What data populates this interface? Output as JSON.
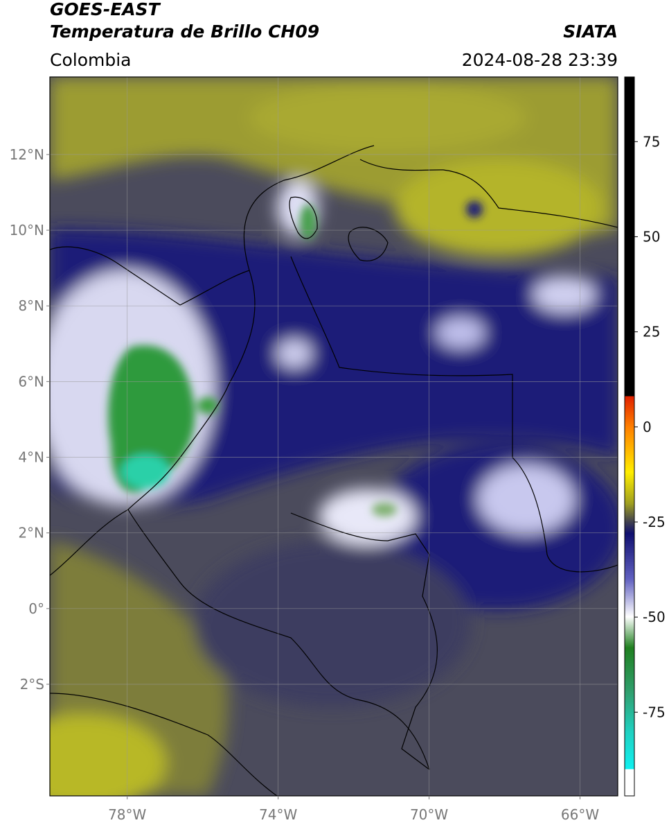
{
  "header": {
    "satellite": "GOES-EAST",
    "product": "Temperatura de Brillo CH09",
    "source": "SIATA",
    "region": "Colombia",
    "timestamp": "2024-08-28 23:39"
  },
  "map": {
    "lon_range": [
      -80.05,
      -65.0
    ],
    "lat_range": [
      -4.95,
      14.05
    ],
    "lon_ticks": [
      {
        "value": -78,
        "label": "78°W"
      },
      {
        "value": -74,
        "label": "74°W"
      },
      {
        "value": -70,
        "label": "70°W"
      },
      {
        "value": -66,
        "label": "66°W"
      }
    ],
    "lat_ticks": [
      {
        "value": 12,
        "label": "12°N"
      },
      {
        "value": 10,
        "label": "10°N"
      },
      {
        "value": 8,
        "label": "8°N"
      },
      {
        "value": 6,
        "label": "6°N"
      },
      {
        "value": 4,
        "label": "4°N"
      },
      {
        "value": 2,
        "label": "2°N"
      },
      {
        "value": 0,
        "label": "0°"
      },
      {
        "value": -2,
        "label": "2°S"
      }
    ]
  },
  "colorbar": {
    "range": [
      -97,
      92
    ],
    "ticks": [
      75,
      50,
      25,
      0,
      -25,
      -50,
      -75
    ]
  }
}
